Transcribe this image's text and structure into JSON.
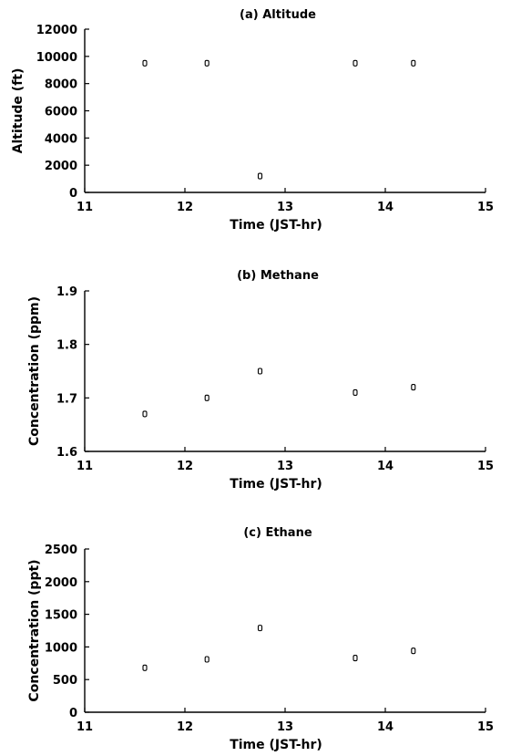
{
  "chart_data": [
    {
      "type": "scatter",
      "title": "(a) Altitude",
      "xlabel": "Time (JST-hr)",
      "ylabel": "Altitude (ft)",
      "xlim": [
        11,
        15
      ],
      "ylim": [
        0,
        12000
      ],
      "x_ticks": [
        "11",
        "12",
        "13",
        "14",
        "15"
      ],
      "y_ticks": [
        "0",
        "2000",
        "4000",
        "6000",
        "8000",
        "10000",
        "12000"
      ],
      "series": [
        {
          "x": [
            11.6,
            12.22,
            12.75,
            13.7,
            14.28
          ],
          "y": [
            9500,
            9500,
            1200,
            9500,
            9500
          ]
        }
      ]
    },
    {
      "type": "scatter",
      "title": "(b) Methane",
      "xlabel": "Time (JST-hr)",
      "ylabel": "Concentration (ppm)",
      "xlim": [
        11,
        15
      ],
      "ylim": [
        1.6,
        1.9
      ],
      "x_ticks": [
        "11",
        "12",
        "13",
        "14",
        "15"
      ],
      "y_ticks": [
        "1.6",
        "1.7",
        "1.8",
        "1.9"
      ],
      "series": [
        {
          "x": [
            11.6,
            12.22,
            12.75,
            13.7,
            14.28
          ],
          "y": [
            1.67,
            1.7,
            1.75,
            1.71,
            1.72
          ]
        }
      ]
    },
    {
      "type": "scatter",
      "title": "(c) Ethane",
      "xlabel": "Time (JST-hr)",
      "ylabel": "Concentration (ppt)",
      "xlim": [
        11,
        15
      ],
      "ylim": [
        0,
        2500
      ],
      "x_ticks": [
        "11",
        "12",
        "13",
        "14",
        "15"
      ],
      "y_ticks": [
        "0",
        "500",
        "1000",
        "1500",
        "2000",
        "2500"
      ],
      "series": [
        {
          "x": [
            11.6,
            12.22,
            12.75,
            13.7,
            14.28
          ],
          "y": [
            680,
            810,
            1290,
            830,
            940
          ]
        }
      ]
    }
  ]
}
